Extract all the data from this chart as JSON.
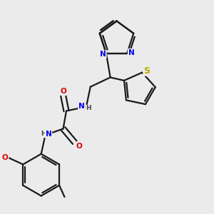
{
  "background_color": "#ebebeb",
  "bond_color": "#1a1a1a",
  "atom_colors": {
    "N": "#0000ee",
    "O": "#dd0000",
    "S": "#bbaa00",
    "H": "#444444"
  },
  "figsize": [
    3.0,
    3.0
  ],
  "dpi": 100,
  "lw": 1.6,
  "fs": 7.5
}
